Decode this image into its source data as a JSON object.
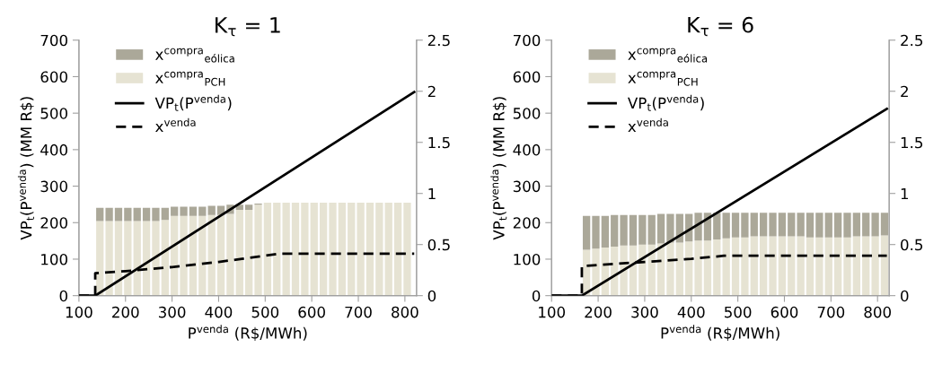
{
  "chart_data": [
    {
      "type": "bar",
      "title": "K$_{τ}$ = 1",
      "xlabel": "P$^{venda}$ (R$/MWh)",
      "ylabel": "VP$_{t}$(P$^{venda}$) (MM R$)",
      "stacked": true,
      "legend": "top left",
      "xlim": [
        100,
        825
      ],
      "xticks": [
        100,
        200,
        300,
        400,
        500,
        600,
        700,
        800
      ],
      "ylim": [
        0,
        700
      ],
      "yticks": [
        0,
        100,
        200,
        300,
        400,
        500,
        600,
        700
      ],
      "y2lim": [
        0,
        2.5
      ],
      "y2ticks": [
        0,
        0.5,
        1,
        1.5,
        2,
        2.5
      ],
      "series": [
        {
          "name": "x$^{compra}$$_{PCH}$",
          "axis": "y2",
          "color": "#e6e3d3",
          "x": [
            145,
            165,
            185,
            205,
            225,
            245,
            265,
            285,
            305,
            325,
            345,
            365,
            385,
            405,
            425,
            445,
            465,
            485,
            505,
            525,
            545,
            565,
            585,
            605,
            625,
            645,
            665,
            685,
            705,
            725,
            745,
            765,
            785,
            805
          ],
          "values": [
            0.73,
            0.73,
            0.73,
            0.73,
            0.73,
            0.73,
            0.73,
            0.74,
            0.78,
            0.78,
            0.78,
            0.78,
            0.79,
            0.79,
            0.8,
            0.84,
            0.84,
            0.89,
            0.91,
            0.91,
            0.91,
            0.91,
            0.91,
            0.91,
            0.91,
            0.91,
            0.91,
            0.91,
            0.91,
            0.91,
            0.91,
            0.91,
            0.91,
            0.91
          ]
        },
        {
          "name": "x$^{compra}$$_{eólica}$",
          "axis": "y2",
          "color": "#aba899",
          "x": [
            145,
            165,
            185,
            205,
            225,
            245,
            265,
            285,
            305,
            325,
            345,
            365,
            385,
            405,
            425,
            445,
            465,
            485,
            505,
            525,
            545,
            565,
            585,
            605,
            625,
            645,
            665,
            685,
            705,
            725,
            745,
            765,
            785,
            805
          ],
          "values": [
            0.13,
            0.13,
            0.13,
            0.13,
            0.13,
            0.13,
            0.13,
            0.12,
            0.09,
            0.09,
            0.09,
            0.09,
            0.09,
            0.09,
            0.09,
            0.05,
            0.05,
            0.01,
            0,
            0,
            0,
            0,
            0,
            0,
            0,
            0,
            0,
            0,
            0,
            0,
            0,
            0,
            0,
            0
          ]
        },
        {
          "name": "VP$_{t}$(P$^{venda}$)",
          "type": "line",
          "line_style": "solid",
          "color": "#000000",
          "x": [
            100,
            135,
            820
          ],
          "values": [
            0,
            0,
            558
          ]
        },
        {
          "name": "x$^{venda}$",
          "type": "line",
          "axis": "y2",
          "line_style": "dashed",
          "color": "#000000",
          "x": [
            100,
            135,
            135,
            200,
            300,
            400,
            450,
            530,
            820
          ],
          "values": [
            0,
            0,
            0.22,
            0.24,
            0.28,
            0.33,
            0.36,
            0.41,
            0.41
          ]
        }
      ]
    },
    {
      "type": "bar",
      "title": "K$_{τ}$ = 6",
      "xlabel": "P$^{venda}$ (R$/MWh)",
      "ylabel": "VP$_{t}$(P$^{venda}$) (MM R$)",
      "stacked": true,
      "legend": "top left",
      "xlim": [
        100,
        825
      ],
      "xticks": [
        100,
        200,
        300,
        400,
        500,
        600,
        700,
        800
      ],
      "ylim": [
        0,
        700
      ],
      "yticks": [
        0,
        100,
        200,
        300,
        400,
        500,
        600,
        700
      ],
      "y2lim": [
        0,
        2.5
      ],
      "y2ticks": [
        0,
        0.5,
        1,
        1.5,
        2,
        2.5
      ],
      "series": [
        {
          "name": "x$^{compra}$$_{PCH}$",
          "axis": "y2",
          "color": "#e6e3d3",
          "x": [
            175,
            195,
            215,
            235,
            255,
            275,
            295,
            315,
            335,
            355,
            375,
            395,
            415,
            435,
            455,
            475,
            495,
            515,
            535,
            555,
            575,
            595,
            615,
            635,
            655,
            675,
            695,
            715,
            735,
            755,
            775,
            795,
            815
          ],
          "values": [
            0.45,
            0.46,
            0.47,
            0.48,
            0.49,
            0.49,
            0.5,
            0.5,
            0.51,
            0.52,
            0.52,
            0.53,
            0.54,
            0.54,
            0.55,
            0.56,
            0.57,
            0.57,
            0.58,
            0.58,
            0.58,
            0.58,
            0.58,
            0.58,
            0.57,
            0.57,
            0.57,
            0.57,
            0.57,
            0.58,
            0.58,
            0.58,
            0.59
          ]
        },
        {
          "name": "x$^{compra}$$_{eólica}$",
          "axis": "y2",
          "color": "#aba899",
          "x": [
            175,
            195,
            215,
            235,
            255,
            275,
            295,
            315,
            335,
            355,
            375,
            395,
            415,
            435,
            455,
            475,
            495,
            515,
            535,
            555,
            575,
            595,
            615,
            635,
            655,
            675,
            695,
            715,
            735,
            755,
            775,
            795,
            815
          ],
          "values": [
            0.33,
            0.32,
            0.31,
            0.31,
            0.3,
            0.3,
            0.29,
            0.29,
            0.29,
            0.28,
            0.28,
            0.27,
            0.27,
            0.27,
            0.26,
            0.25,
            0.24,
            0.24,
            0.23,
            0.23,
            0.23,
            0.23,
            0.23,
            0.23,
            0.24,
            0.24,
            0.24,
            0.24,
            0.24,
            0.23,
            0.23,
            0.23,
            0.22
          ]
        },
        {
          "name": "VP$_{t}$(P$^{venda}$)",
          "type": "line",
          "line_style": "solid",
          "color": "#000000",
          "x": [
            100,
            165,
            820
          ],
          "values": [
            0,
            0,
            512
          ]
        },
        {
          "name": "x$^{venda}$",
          "type": "line",
          "axis": "y2",
          "line_style": "dashed",
          "color": "#000000",
          "x": [
            100,
            165,
            165,
            300,
            400,
            470,
            820
          ],
          "values": [
            0,
            0,
            0.29,
            0.33,
            0.36,
            0.39,
            0.39
          ]
        }
      ]
    }
  ]
}
